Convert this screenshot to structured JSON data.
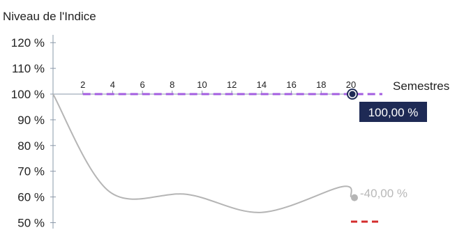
{
  "chart_data": {
    "type": "line",
    "ylabel": "Niveau de l'Indice",
    "xlabel": "Semestres",
    "x_ticks": [
      2,
      4,
      6,
      8,
      10,
      12,
      14,
      16,
      18,
      20
    ],
    "xlim": [
      0,
      20
    ],
    "y_ticks": [
      {
        "value": 120,
        "label": "120 %"
      },
      {
        "value": 110,
        "label": "110 %"
      },
      {
        "value": 100,
        "label": "100 %"
      },
      {
        "value": 90,
        "label": "90 %"
      },
      {
        "value": 80,
        "label": "80 %"
      },
      {
        "value": 70,
        "label": "70 %"
      },
      {
        "value": 60,
        "label": "60 %"
      },
      {
        "value": 50,
        "label": "50 %",
        "highlight": true
      }
    ],
    "ylim": [
      50,
      120
    ],
    "reference_level": {
      "value": 100,
      "color": "#a35de0",
      "dashed": true
    },
    "barrier_level": {
      "value": 50,
      "color": "#d42c2c",
      "dashed": true
    },
    "series": [
      {
        "color": "#b5b5b5",
        "points": [
          {
            "x": 0,
            "y": 100
          },
          {
            "x": 3.8,
            "y": 62
          },
          {
            "x": 9,
            "y": 61
          },
          {
            "x": 14,
            "y": 54
          },
          {
            "x": 19.4,
            "y": 64
          },
          {
            "x": 20,
            "y": 60
          }
        ]
      }
    ],
    "end_labels": {
      "final_level": "100,00 %",
      "performance": "-40,00 %"
    },
    "colors": {
      "axis": "#8a98a8",
      "badge": "#1e2a55",
      "highlight_tick": "#d42c2c"
    }
  }
}
